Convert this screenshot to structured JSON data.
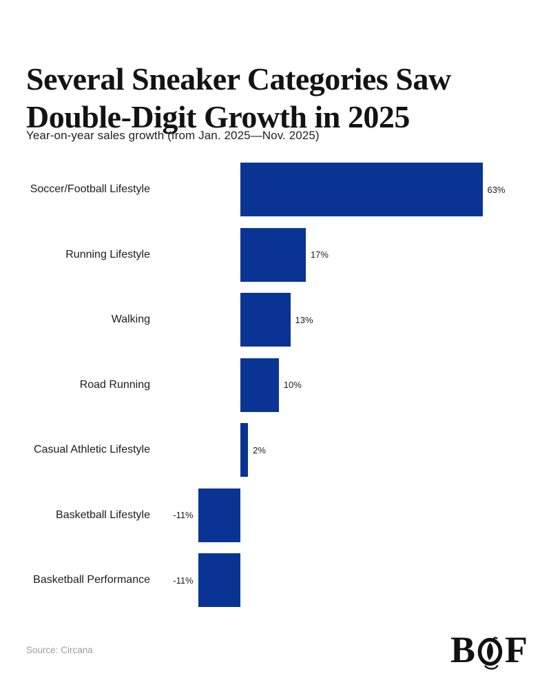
{
  "header": {
    "title_lines": [
      "Several Sneaker Categories Saw",
      "Double-Digit Growth in 2025"
    ],
    "title_full": "Several Sneaker Categories Saw Double-Digit Growth in 2025",
    "subtitle": "Year-on-year sales growth (from Jan. 2025—Nov. 2025)"
  },
  "chart_data": {
    "type": "bar",
    "orientation": "horizontal",
    "title": "Several Sneaker Categories Saw Double-Digit Growth in 2025",
    "subtitle": "Year-on-year sales growth (from Jan. 2025—Nov. 2025)",
    "categories": [
      "Soccer/Football Lifestyle",
      "Running Lifestyle",
      "Walking",
      "Road Running",
      "Casual Athletic Lifestyle",
      "Basketball Lifestyle",
      "Basketball Performance"
    ],
    "values": [
      63,
      17,
      13,
      10,
      2,
      -11,
      -11
    ],
    "value_labels": [
      "63%",
      "17%",
      "13%",
      "10%",
      "2%",
      "-11%",
      "-11%"
    ],
    "unit": "%",
    "xlim": [
      -11,
      63
    ],
    "grid": false,
    "legend": false,
    "value_label_position": "outside-end",
    "bar_color": "#0A3494"
  },
  "footer": {
    "source": "Source: Circana",
    "logo_letters": [
      "B",
      "O",
      "F"
    ]
  }
}
